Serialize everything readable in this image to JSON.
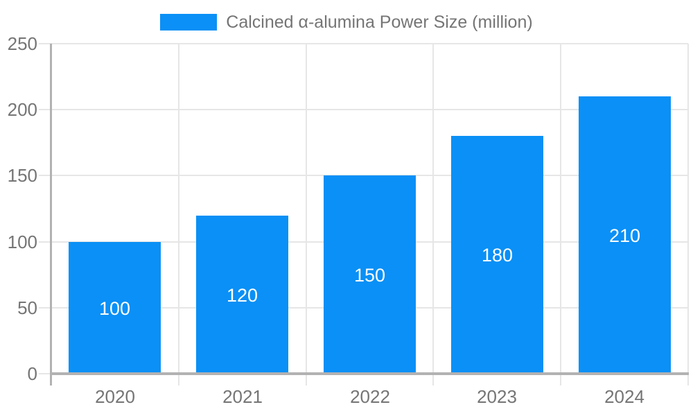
{
  "chart_data": {
    "type": "bar",
    "title": "Calcined α-alumina Power Size (million)",
    "legend": {
      "position": "top",
      "label": "Calcined α-alumina Power Size (million)"
    },
    "categories": [
      "2020",
      "2021",
      "2022",
      "2023",
      "2024"
    ],
    "series": [
      {
        "name": "Calcined α-alumina Power Size (million)",
        "values": [
          100,
          120,
          150,
          180,
          210
        ]
      }
    ],
    "bar_value_labels": [
      "100",
      "120",
      "150",
      "180",
      "210"
    ],
    "xlabel": "",
    "ylabel": "",
    "ylim": [
      0,
      250
    ],
    "yticks": [
      0,
      50,
      100,
      150,
      200,
      250
    ],
    "grid": true,
    "colors": {
      "bar": "#0A90F6",
      "bar_label_text": "#FFFFFF",
      "axis_text": "#757575",
      "axis_line": "#B2B2B2",
      "gridline": "#E6E6E6",
      "background": "#FFFFFF"
    }
  }
}
